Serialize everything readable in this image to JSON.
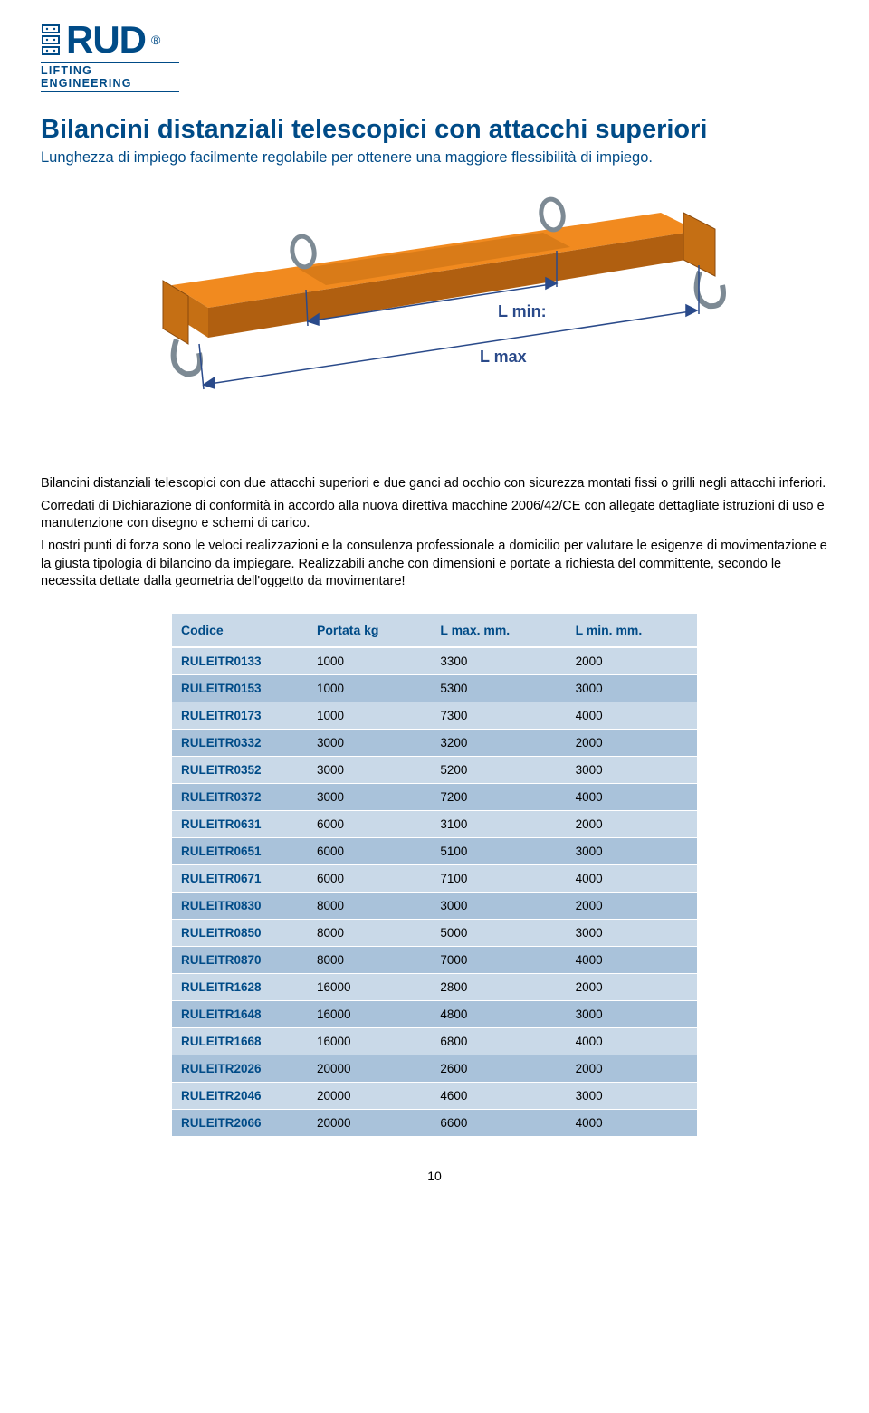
{
  "logo": {
    "brand": "RUD",
    "subtitle": "LIFTING ENGINEERING"
  },
  "header": {
    "title": "Bilancini distanziali telescopici con attacchi superiori",
    "subtitle": "Lunghezza di impiego facilmente regolabile per ottenere una maggiore flessibilità di impiego."
  },
  "diagram": {
    "label_lmin": "L min:",
    "label_lmax": "L max",
    "beam_color": "#f18a1f",
    "beam_shadow": "#b05f10",
    "shackle_color": "#7d8a94",
    "arrow_color": "#2a4a8a",
    "label_color": "#2a4a8a",
    "bg": "#ffffff"
  },
  "paragraphs": {
    "p1": "Bilancini distanziali telescopici con due attacchi superiori e due ganci ad occhio con sicurezza montati fissi o grilli negli attacchi inferiori.",
    "p2": "Corredati di Dichiarazione di conformità in accordo alla nuova direttiva macchine 2006/42/CE con allegate dettagliate istruzioni di uso e manutenzione con disegno e schemi di carico.",
    "p3": "I nostri punti di forza sono le veloci realizzazioni e la consulenza professionale a domicilio per valutare le esigenze di movimentazione e la giusta tipologia di bilancino da impiegare. Realizzabili anche con dimensioni e portate a richiesta del committente, secondo le necessita dettate dalla geometria dell'oggetto da movimentare!"
  },
  "table": {
    "columns": [
      "Codice",
      "Portata kg",
      "L max. mm.",
      "L min. mm."
    ],
    "col_widths": [
      "150px",
      "120px",
      "130px",
      "130px"
    ],
    "header_bg": "#c9d9e8",
    "row_odd_bg": "#c9d9e8",
    "row_even_bg": "#a9c2da",
    "code_color": "#004b87",
    "rows": [
      [
        "RULEITR0133",
        "1000",
        "3300",
        "2000"
      ],
      [
        "RULEITR0153",
        "1000",
        "5300",
        "3000"
      ],
      [
        "RULEITR0173",
        "1000",
        "7300",
        "4000"
      ],
      [
        "RULEITR0332",
        "3000",
        "3200",
        "2000"
      ],
      [
        "RULEITR0352",
        "3000",
        "5200",
        "3000"
      ],
      [
        "RULEITR0372",
        "3000",
        "7200",
        "4000"
      ],
      [
        "RULEITR0631",
        "6000",
        "3100",
        "2000"
      ],
      [
        "RULEITR0651",
        "6000",
        "5100",
        "3000"
      ],
      [
        "RULEITR0671",
        "6000",
        "7100",
        "4000"
      ],
      [
        "RULEITR0830",
        "8000",
        "3000",
        "2000"
      ],
      [
        "RULEITR0850",
        "8000",
        "5000",
        "3000"
      ],
      [
        "RULEITR0870",
        "8000",
        "7000",
        "4000"
      ],
      [
        "RULEITR1628",
        "16000",
        "2800",
        "2000"
      ],
      [
        "RULEITR1648",
        "16000",
        "4800",
        "3000"
      ],
      [
        "RULEITR1668",
        "16000",
        "6800",
        "4000"
      ],
      [
        "RULEITR2026",
        "20000",
        "2600",
        "2000"
      ],
      [
        "RULEITR2046",
        "20000",
        "4600",
        "3000"
      ],
      [
        "RULEITR2066",
        "20000",
        "6600",
        "4000"
      ]
    ]
  },
  "page_number": "10"
}
